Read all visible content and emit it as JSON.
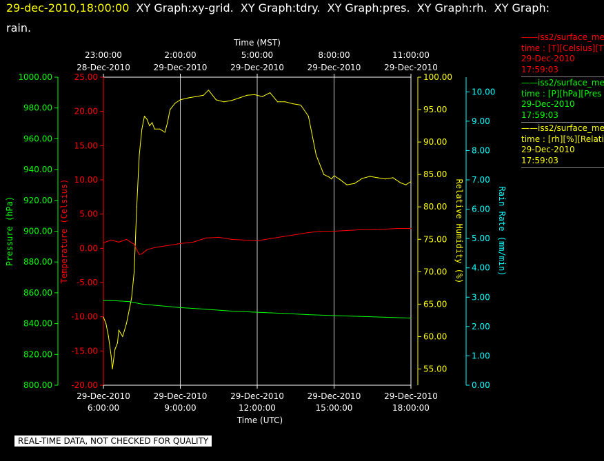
{
  "header": {
    "date": "29-dec-2010,18:00:00",
    "line1_rest": "  XY Graph:xy-grid.  XY Graph:tdry.  XY Graph:pres.  XY Graph:rh.  XY Graph:",
    "line2": "rain."
  },
  "legend": [
    {
      "name": "iss2/surface_me",
      "units": "time : [T][Celsius][T",
      "date": "29-Dec-2010",
      "time": "17:59:03",
      "color": "#ff0000"
    },
    {
      "name": "iss2/surface_me",
      "units": "time : [P][hPa][Pres",
      "date": "29-Dec-2010",
      "time": "17:59:03",
      "color": "#00ff00"
    },
    {
      "name": "iss2/surface_me",
      "units": "time : [rh][%][Relati",
      "date": "29-Dec-2010",
      "time": "17:59:03",
      "color": "#ffff00"
    }
  ],
  "disclaimer": "REAL-TIME DATA, NOT CHECKED FOR QUALITY",
  "chart_data": {
    "type": "line",
    "top_axis": {
      "title": "Time (MST)",
      "ticks": [
        {
          "hour": 0,
          "line1": "23:00:00",
          "line2": "28-Dec-2010"
        },
        {
          "hour": 3,
          "line1": "2:00:00",
          "line2": "29-Dec-2010"
        },
        {
          "hour": 6,
          "line1": "5:00:00",
          "line2": "29-Dec-2010"
        },
        {
          "hour": 9,
          "line1": "8:00:00",
          "line2": "29-Dec-2010"
        },
        {
          "hour": 12,
          "line1": "11:00:00",
          "line2": "29-Dec-2010"
        }
      ]
    },
    "bottom_axis": {
      "title": "Time (UTC)",
      "xlim": [
        0,
        12
      ],
      "ticks": [
        {
          "hour": 0,
          "line1": "29-Dec-2010",
          "line2": "6:00:00"
        },
        {
          "hour": 3,
          "line1": "29-Dec-2010",
          "line2": "9:00:00"
        },
        {
          "hour": 6,
          "line1": "29-Dec-2010",
          "line2": "12:00:00"
        },
        {
          "hour": 9,
          "line1": "29-Dec-2010",
          "line2": "15:00:00"
        },
        {
          "hour": 12,
          "line1": "29-Dec-2010",
          "line2": "18:00:00"
        }
      ]
    },
    "grid": "vertical",
    "axes": [
      {
        "id": "pres",
        "label": "Pressure (hPa)",
        "color": "#00ff00",
        "side": "left-outer",
        "ylim": [
          800,
          1000
        ],
        "ticks": [
          "800.00",
          "820.00",
          "840.00",
          "860.00",
          "880.00",
          "900.00",
          "920.00",
          "940.00",
          "960.00",
          "980.00",
          "1000.00"
        ]
      },
      {
        "id": "tdry",
        "label": "Temperature (Celsius)",
        "color": "#ff0000",
        "side": "left-inner",
        "ylim": [
          -20,
          25
        ],
        "ticks": [
          "-20.00",
          "-15.00",
          "-10.00",
          "-5.00",
          "0.00",
          "5.00",
          "10.00",
          "15.00",
          "20.00",
          "25.00"
        ]
      },
      {
        "id": "rh",
        "label": "Relative Humidity (%)",
        "color": "#ffff00",
        "side": "right-inner",
        "ylim": [
          52.5,
          100
        ],
        "ticks": [
          "55.00",
          "60.00",
          "65.00",
          "70.00",
          "75.00",
          "80.00",
          "85.00",
          "90.00",
          "95.00",
          "100.00"
        ]
      },
      {
        "id": "rain",
        "label": "Rain Rate (mm/min)",
        "color": "#00ffff",
        "side": "right-outer",
        "ylim": [
          0,
          10.5
        ],
        "ticks": [
          "0.00",
          "1.00",
          "2.00",
          "3.00",
          "4.00",
          "5.00",
          "6.00",
          "7.00",
          "8.00",
          "9.00",
          "10.00"
        ]
      }
    ],
    "series": [
      {
        "name": "iss2/surface_me",
        "axis": "rh",
        "color": "#ffff00",
        "x": [
          0,
          0.1,
          0.2,
          0.3,
          0.35,
          0.45,
          0.55,
          0.6,
          0.75,
          0.9,
          1.0,
          1.1,
          1.2,
          1.3,
          1.4,
          1.5,
          1.6,
          1.7,
          1.8,
          1.9,
          2.0,
          2.2,
          2.4,
          2.5,
          2.6,
          2.8,
          3.0,
          3.3,
          3.6,
          3.9,
          4.1,
          4.4,
          4.7,
          5.0,
          5.3,
          5.6,
          5.9,
          6.2,
          6.5,
          6.8,
          7.1,
          7.4,
          7.7,
          8.0,
          8.3,
          8.6,
          8.8,
          8.9,
          9.0,
          9.2,
          9.5,
          9.8,
          10.1,
          10.4,
          10.7,
          11.0,
          11.3,
          11.6,
          11.8,
          12.0
        ],
        "y": [
          63,
          62,
          60,
          57,
          55,
          58,
          59,
          61,
          60,
          62,
          64,
          66,
          70,
          80,
          88,
          92,
          94,
          93.5,
          92.5,
          93,
          92,
          92,
          91.5,
          93,
          95,
          96,
          96.5,
          96.8,
          97,
          97.2,
          98,
          96.5,
          96.2,
          96.4,
          96.8,
          97.2,
          97.3,
          97,
          97.6,
          96.2,
          96.2,
          95.9,
          95.7,
          94,
          88,
          85,
          84.6,
          84.3,
          84.8,
          84.3,
          83.4,
          83.6,
          84.4,
          84.7,
          84.5,
          84.3,
          84.5,
          83.7,
          83.4,
          83.9
        ]
      },
      {
        "name": "iss2/surface_me",
        "axis": "tdry",
        "color": "#ff0000",
        "x": [
          0,
          0.3,
          0.6,
          0.9,
          1.2,
          1.3,
          1.4,
          1.5,
          1.7,
          2.0,
          2.5,
          3.0,
          3.5,
          4.0,
          4.5,
          5.0,
          5.5,
          6.0,
          6.5,
          7.0,
          7.5,
          8.0,
          8.5,
          9.0,
          9.5,
          10.0,
          10.5,
          11.0,
          11.5,
          12.0
        ],
        "y": [
          0.8,
          1.2,
          0.9,
          1.3,
          0.6,
          -0.2,
          -0.9,
          -0.8,
          -0.2,
          0.1,
          0.4,
          0.7,
          0.9,
          1.5,
          1.6,
          1.3,
          1.2,
          1.1,
          1.4,
          1.7,
          2.0,
          2.3,
          2.5,
          2.5,
          2.6,
          2.7,
          2.7,
          2.8,
          2.9,
          2.9
        ]
      },
      {
        "name": "iss2/surface_me",
        "axis": "pres",
        "color": "#00ff00",
        "x": [
          0,
          0.5,
          1.0,
          1.5,
          2.0,
          3.0,
          4.0,
          5.0,
          6.0,
          7.0,
          8.0,
          9.0,
          10.0,
          11.0,
          12.0
        ],
        "y": [
          855.0,
          854.8,
          854.3,
          852.7,
          851.9,
          850.4,
          849.3,
          848.1,
          847.4,
          846.6,
          845.8,
          845.2,
          844.7,
          844.1,
          843.6
        ]
      }
    ]
  }
}
